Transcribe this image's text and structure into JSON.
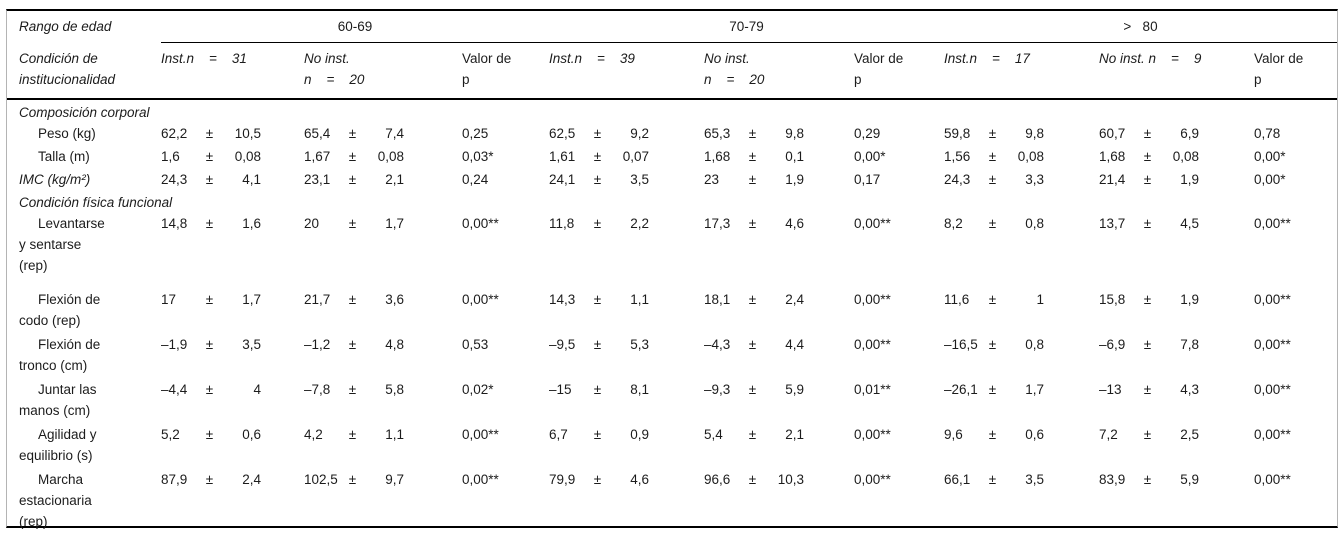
{
  "table": {
    "pm": "±",
    "header": {
      "age_label": "Rango de edad",
      "groups": [
        "60-69",
        "70-79",
        ">   80"
      ],
      "cond_label": "Condición de\ninstitucionalidad",
      "cols": [
        {
          "text": "Inst.n    =    31"
        },
        {
          "text": "No inst.\nn    =    20"
        },
        {
          "text": "Valor de\np"
        },
        {
          "text": "Inst.n    =    39"
        },
        {
          "text": "No inst.\nn    =    20"
        },
        {
          "text": "Valor de\np"
        },
        {
          "text": "Inst.n    =    17"
        },
        {
          "text": "No inst. n    =    9"
        },
        {
          "text": "Valor de\np"
        }
      ]
    },
    "sections": [
      {
        "key": "corporal",
        "title": "Composición corporal",
        "rows": [
          {
            "label": "Peso (kg)",
            "indent": true,
            "italic": false,
            "cells": [
              [
                "62,2",
                "10,5"
              ],
              [
                "65,4",
                "7,4"
              ],
              "0,25",
              [
                "62,5",
                "9,2"
              ],
              [
                "65,3",
                "9,8"
              ],
              "0,29",
              [
                "59,8",
                "9,8"
              ],
              [
                "60,7",
                "6,9"
              ],
              "0,78"
            ]
          },
          {
            "label": "Talla (m)",
            "indent": true,
            "italic": false,
            "cells": [
              [
                "1,6",
                "0,08"
              ],
              [
                "1,67",
                "0,08"
              ],
              "0,03*",
              [
                "1,61",
                "0,07"
              ],
              [
                "1,68",
                "0,1"
              ],
              "0,00*",
              [
                "1,56",
                "0,08"
              ],
              [
                "1,68",
                "0,08"
              ],
              "0,00*"
            ]
          },
          {
            "label": "IMC (kg/m²)",
            "indent": false,
            "italic": true,
            "cells": [
              [
                "24,3",
                "4,1"
              ],
              [
                "23,1",
                "2,1"
              ],
              "0,24",
              [
                "24,1",
                "3,5"
              ],
              [
                "23",
                "1,9"
              ],
              "0,17",
              [
                "24,3",
                "3,3"
              ],
              [
                "21,4",
                "1,9"
              ],
              "0,00*"
            ]
          }
        ]
      },
      {
        "key": "funcional",
        "title": "Condición física funcional",
        "rows": [
          {
            "label": "Levantarse\ny sentarse\n(rep)",
            "indent": true,
            "italic": false,
            "cells": [
              [
                "14,8",
                "1,6"
              ],
              [
                "20",
                "1,7"
              ],
              "0,00**",
              [
                "11,8",
                "2,2"
              ],
              [
                "17,3",
                "4,6"
              ],
              "0,00**",
              [
                "8,2",
                "0,8"
              ],
              [
                "13,7",
                "4,5"
              ],
              "0,00**"
            ]
          },
          {
            "label": "Flexión de\ncodo (rep)",
            "indent": true,
            "italic": false,
            "cells": [
              [
                "17",
                "1,7"
              ],
              [
                "21,7",
                "3,6"
              ],
              "0,00**",
              [
                "14,3",
                "1,1"
              ],
              [
                "18,1",
                "2,4"
              ],
              "0,00**",
              [
                "11,6",
                "1"
              ],
              [
                "15,8",
                "1,9"
              ],
              "0,00**"
            ]
          },
          {
            "label": "Flexión de\ntronco (cm)",
            "indent": true,
            "italic": false,
            "cells": [
              [
                "–1,9",
                "3,5"
              ],
              [
                "–1,2",
                "4,8"
              ],
              "0,53",
              [
                "–9,5",
                "5,3"
              ],
              [
                "–4,3",
                "4,4"
              ],
              "0,00**",
              [
                "–16,5",
                "0,8"
              ],
              [
                "–6,9",
                "7,8"
              ],
              "0,00**"
            ]
          },
          {
            "label": "Juntar las\nmanos (cm)",
            "indent": true,
            "italic": false,
            "cells": [
              [
                "–4,4",
                "4"
              ],
              [
                "–7,8",
                "5,8"
              ],
              "0,02*",
              [
                "–15",
                "8,1"
              ],
              [
                "–9,3",
                "5,9"
              ],
              "0,01**",
              [
                "–26,1",
                "1,7"
              ],
              [
                "–13",
                "4,3"
              ],
              "0,00**"
            ]
          },
          {
            "label": "Agilidad y\nequilibrio (s)",
            "indent": true,
            "italic": false,
            "cells": [
              [
                "5,2",
                "0,6"
              ],
              [
                "4,2",
                "1,1"
              ],
              "0,00**",
              [
                "6,7",
                "0,9"
              ],
              [
                "5,4",
                "2,1"
              ],
              "0,00**",
              [
                "9,6",
                "0,6"
              ],
              [
                "7,2",
                "2,5"
              ],
              "0,00**"
            ]
          },
          {
            "label": "Marcha\nestacionaria\n(rep)",
            "indent": true,
            "italic": false,
            "cells": [
              [
                "87,9",
                "2,4"
              ],
              [
                "102,5",
                "9,7"
              ],
              "0,00**",
              [
                "79,9",
                "4,6"
              ],
              [
                "96,6",
                "10,3"
              ],
              "0,00**",
              [
                "66,1",
                "3,5"
              ],
              [
                "83,9",
                "5,9"
              ],
              "0,00**"
            ]
          }
        ]
      }
    ]
  }
}
